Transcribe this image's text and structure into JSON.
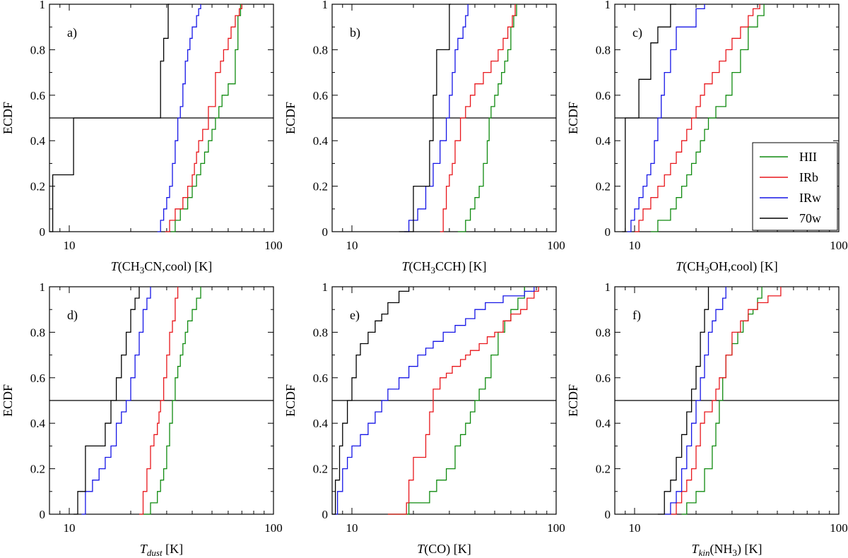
{
  "chart_data": [
    {
      "type": "line",
      "panel_label": "a)",
      "xlabel": {
        "prefix": "T",
        "mid": "(CH",
        "sub": "3",
        "suffix": "CN,cool) [K]"
      },
      "ylabel": "ECDF",
      "xscale": "log",
      "xlim": [
        8,
        100
      ],
      "ylim": [
        0,
        1
      ],
      "x_tick_labels": [
        {
          "value": 10,
          "label": "10"
        },
        {
          "value": 100,
          "label": "100"
        }
      ],
      "y_tick_labels": [
        "0",
        "0.2",
        "0.4",
        "0.6",
        "0.8",
        "1"
      ],
      "median_line": 0.5,
      "series": [
        {
          "name": "HII",
          "color": "#0f8a0f",
          "x": [
            31.5,
            33,
            35,
            38,
            40,
            42,
            44,
            46,
            48,
            50,
            52,
            54,
            56,
            60,
            65,
            67,
            69
          ],
          "y": [
            0,
            0.05,
            0.1,
            0.15,
            0.2,
            0.25,
            0.3,
            0.35,
            0.4,
            0.45,
            0.5,
            0.55,
            0.6,
            0.65,
            0.8,
            0.95,
            1
          ]
        },
        {
          "name": "IRb",
          "color": "#e8161b",
          "x": [
            29.5,
            31,
            33,
            36,
            38,
            40,
            41,
            42,
            43,
            45,
            48,
            52,
            55,
            57,
            60,
            62,
            65,
            68,
            70
          ],
          "y": [
            0,
            0.05,
            0.1,
            0.15,
            0.2,
            0.25,
            0.3,
            0.35,
            0.4,
            0.45,
            0.55,
            0.7,
            0.75,
            0.8,
            0.85,
            0.9,
            0.95,
            0.98,
            1
          ]
        },
        {
          "name": "IRw",
          "color": "#1515e6",
          "x": [
            27,
            28,
            29,
            30,
            31,
            32,
            33,
            34,
            35,
            36,
            37,
            38,
            39,
            40,
            42,
            43,
            44
          ],
          "y": [
            0,
            0.05,
            0.1,
            0.15,
            0.2,
            0.3,
            0.4,
            0.5,
            0.55,
            0.65,
            0.75,
            0.8,
            0.85,
            0.9,
            0.95,
            0.98,
            1
          ]
        },
        {
          "name": "70w",
          "color": "#000000",
          "x": [
            8,
            8.3,
            10.5,
            28,
            29,
            30.5,
            31
          ],
          "y": [
            0,
            0.25,
            0.5,
            0.75,
            0.85,
            1,
            1
          ]
        }
      ]
    },
    {
      "type": "line",
      "panel_label": "b)",
      "xlabel": {
        "prefix": "T",
        "mid": "(CH",
        "sub": "3",
        "suffix": "CCH) [K]"
      },
      "ylabel": "ECDF",
      "xscale": "log",
      "xlim": [
        8,
        100
      ],
      "ylim": [
        0,
        1
      ],
      "x_tick_labels": [
        {
          "value": 10,
          "label": "10"
        },
        {
          "value": 100,
          "label": "100"
        }
      ],
      "y_tick_labels": [
        "0",
        "0.2",
        "0.4",
        "0.6",
        "0.8",
        "1"
      ],
      "median_line": 0.5,
      "series": [
        {
          "name": "HII",
          "color": "#0f8a0f",
          "x": [
            33,
            36,
            38,
            40,
            42,
            44,
            46,
            47,
            48,
            50,
            52,
            54,
            56,
            58,
            60,
            62,
            64
          ],
          "y": [
            0,
            0.05,
            0.1,
            0.15,
            0.2,
            0.3,
            0.4,
            0.5,
            0.55,
            0.6,
            0.65,
            0.7,
            0.75,
            0.8,
            0.9,
            0.95,
            1
          ]
        },
        {
          "name": "IRb",
          "color": "#e8161b",
          "x": [
            27,
            28,
            29,
            30,
            31,
            32,
            34,
            36,
            38,
            40,
            44,
            48,
            52,
            55,
            58,
            61,
            63
          ],
          "y": [
            0,
            0.1,
            0.2,
            0.25,
            0.3,
            0.4,
            0.5,
            0.55,
            0.6,
            0.65,
            0.7,
            0.75,
            0.8,
            0.85,
            0.9,
            0.95,
            1
          ]
        },
        {
          "name": "IRw",
          "color": "#1515e6",
          "x": [
            18,
            19,
            21,
            23,
            25,
            27,
            29,
            30,
            31,
            32,
            33,
            35,
            36,
            37
          ],
          "y": [
            0,
            0.05,
            0.1,
            0.2,
            0.3,
            0.4,
            0.5,
            0.6,
            0.7,
            0.8,
            0.85,
            0.9,
            0.95,
            1
          ]
        },
        {
          "name": "70w",
          "color": "#000000",
          "x": [
            17,
            20,
            24,
            25,
            26,
            30,
            30.5
          ],
          "y": [
            0,
            0.2,
            0.4,
            0.6,
            0.8,
            1,
            1
          ]
        }
      ]
    },
    {
      "type": "line",
      "panel_label": "c)",
      "xlabel": {
        "prefix": "T",
        "mid": "(CH",
        "sub": "3",
        "suffix": "OH,cool) [K]"
      },
      "ylabel": "ECDF",
      "xscale": "log",
      "xlim": [
        8,
        100
      ],
      "ylim": [
        0,
        1
      ],
      "x_tick_labels": [
        {
          "value": 10,
          "label": "10"
        },
        {
          "value": 100,
          "label": "100"
        }
      ],
      "y_tick_labels": [
        "0",
        "0.2",
        "0.4",
        "0.6",
        "0.8",
        "1"
      ],
      "median_line": 0.5,
      "series": [
        {
          "name": "HII",
          "color": "#0f8a0f",
          "x": [
            12,
            13,
            15,
            16,
            17,
            18,
            19,
            20,
            21,
            22,
            23,
            25,
            28,
            30,
            33,
            36,
            40,
            43
          ],
          "y": [
            0,
            0.05,
            0.1,
            0.15,
            0.2,
            0.25,
            0.3,
            0.35,
            0.4,
            0.45,
            0.5,
            0.55,
            0.6,
            0.7,
            0.8,
            0.9,
            0.95,
            1
          ]
        },
        {
          "name": "IRb",
          "color": "#e8161b",
          "x": [
            10,
            10.5,
            11,
            12,
            13,
            14,
            15,
            16,
            17,
            18,
            19,
            20,
            21,
            22,
            24,
            26,
            28,
            30,
            33,
            36,
            38,
            41
          ],
          "y": [
            0,
            0.05,
            0.1,
            0.15,
            0.2,
            0.25,
            0.3,
            0.35,
            0.4,
            0.45,
            0.5,
            0.55,
            0.6,
            0.65,
            0.7,
            0.75,
            0.8,
            0.85,
            0.9,
            0.95,
            0.98,
            1
          ]
        },
        {
          "name": "IRw",
          "color": "#1515e6",
          "x": [
            9.2,
            9.6,
            10,
            10.5,
            11,
            11.5,
            12,
            12.5,
            13,
            13.5,
            14,
            15,
            16,
            20,
            22
          ],
          "y": [
            0,
            0.05,
            0.1,
            0.15,
            0.2,
            0.25,
            0.3,
            0.4,
            0.5,
            0.6,
            0.7,
            0.8,
            0.9,
            0.98,
            1
          ]
        },
        {
          "name": "70w",
          "color": "#000000",
          "x": [
            8.7,
            9,
            10.5,
            12,
            13,
            15,
            16
          ],
          "y": [
            0,
            0.5,
            0.67,
            0.83,
            0.9,
            1,
            1
          ]
        }
      ],
      "legend": {
        "position": "lower-right",
        "entries": [
          {
            "label": "HII",
            "color": "#0f8a0f"
          },
          {
            "label": "IRb",
            "color": "#e8161b"
          },
          {
            "label": "IRw",
            "color": "#1515e6"
          },
          {
            "label": "70w",
            "color": "#000000"
          }
        ]
      }
    },
    {
      "type": "line",
      "panel_label": "d)",
      "xlabel": {
        "prefix": "T",
        "sub_italic": "dust",
        "suffix": " [K]"
      },
      "ylabel": "ECDF",
      "xscale": "log",
      "xlim": [
        8,
        100
      ],
      "ylim": [
        0,
        1
      ],
      "x_tick_labels": [
        {
          "value": 10,
          "label": "10"
        },
        {
          "value": 100,
          "label": "100"
        }
      ],
      "y_tick_labels": [
        "0",
        "0.2",
        "0.4",
        "0.6",
        "0.8",
        "1"
      ],
      "median_line": 0.5,
      "series": [
        {
          "name": "HII",
          "color": "#0f8a0f",
          "x": [
            23,
            25,
            27,
            28,
            29,
            30,
            31,
            32,
            33,
            34,
            35,
            36,
            37,
            38,
            40,
            42,
            44
          ],
          "y": [
            0,
            0.05,
            0.1,
            0.15,
            0.2,
            0.3,
            0.4,
            0.5,
            0.6,
            0.65,
            0.7,
            0.75,
            0.8,
            0.85,
            0.9,
            0.95,
            1
          ]
        },
        {
          "name": "IRb",
          "color": "#e8161b",
          "x": [
            22,
            23,
            24,
            25,
            26,
            27,
            27.5,
            28,
            29,
            30,
            31,
            32,
            33,
            34
          ],
          "y": [
            0,
            0.1,
            0.2,
            0.3,
            0.35,
            0.4,
            0.45,
            0.5,
            0.6,
            0.7,
            0.8,
            0.85,
            0.95,
            1
          ]
        },
        {
          "name": "IRw",
          "color": "#1515e6",
          "x": [
            11.5,
            12,
            13,
            14,
            15,
            16,
            17,
            18,
            19,
            20,
            21,
            22,
            23,
            24,
            25
          ],
          "y": [
            0,
            0.1,
            0.15,
            0.2,
            0.25,
            0.3,
            0.4,
            0.45,
            0.5,
            0.6,
            0.7,
            0.8,
            0.9,
            0.95,
            1
          ]
        },
        {
          "name": "70w",
          "color": "#000000",
          "x": [
            10.5,
            11,
            12,
            15,
            16,
            17,
            18,
            19,
            20,
            21,
            22
          ],
          "y": [
            0,
            0.1,
            0.3,
            0.4,
            0.5,
            0.6,
            0.7,
            0.8,
            0.9,
            0.95,
            1
          ]
        }
      ]
    },
    {
      "type": "line",
      "panel_label": "e)",
      "xlabel": {
        "prefix": "T",
        "mid": "(CO) [K]"
      },
      "ylabel": "ECDF",
      "xscale": "log",
      "xlim": [
        8,
        100
      ],
      "ylim": [
        0,
        1
      ],
      "x_tick_labels": [
        {
          "value": 10,
          "label": "10"
        },
        {
          "value": 100,
          "label": "100"
        }
      ],
      "y_tick_labels": [
        "0",
        "0.2",
        "0.4",
        "0.6",
        "0.8",
        "1"
      ],
      "median_line": 0.5,
      "series": [
        {
          "name": "HII",
          "color": "#0f8a0f",
          "x": [
            15,
            19,
            24,
            26,
            29,
            32,
            34,
            36,
            38,
            40,
            42,
            45,
            48,
            52,
            56,
            60,
            65,
            70
          ],
          "y": [
            0,
            0.05,
            0.1,
            0.15,
            0.2,
            0.3,
            0.35,
            0.4,
            0.45,
            0.5,
            0.55,
            0.6,
            0.7,
            0.8,
            0.85,
            0.9,
            0.95,
            1
          ]
        },
        {
          "name": "IRb",
          "color": "#e8161b",
          "x": [
            15,
            18.5,
            19,
            20,
            23,
            24,
            25,
            27,
            29,
            31,
            34,
            36,
            38,
            42,
            46,
            50,
            55,
            60,
            67,
            72,
            78,
            82
          ],
          "y": [
            0,
            0.05,
            0.15,
            0.25,
            0.35,
            0.45,
            0.55,
            0.6,
            0.62,
            0.65,
            0.68,
            0.7,
            0.72,
            0.75,
            0.78,
            0.8,
            0.85,
            0.88,
            0.9,
            0.95,
            0.98,
            1
          ]
        },
        {
          "name": "IRw",
          "color": "#1515e6",
          "x": [
            8.2,
            8.5,
            9,
            9.5,
            10,
            11,
            12,
            13,
            14,
            15,
            17,
            19,
            21,
            23,
            25,
            28,
            32,
            36,
            40,
            45,
            55,
            70,
            78
          ],
          "y": [
            0,
            0.1,
            0.2,
            0.25,
            0.3,
            0.35,
            0.4,
            0.45,
            0.5,
            0.55,
            0.6,
            0.65,
            0.7,
            0.73,
            0.76,
            0.8,
            0.83,
            0.86,
            0.9,
            0.93,
            0.96,
            0.98,
            1
          ]
        },
        {
          "name": "70w",
          "color": "#000000",
          "x": [
            8,
            8.3,
            8.7,
            9,
            9.5,
            10,
            10.5,
            11,
            12,
            13,
            14,
            15,
            17,
            19
          ],
          "y": [
            0,
            0.15,
            0.3,
            0.4,
            0.5,
            0.6,
            0.7,
            0.75,
            0.8,
            0.85,
            0.88,
            0.93,
            0.98,
            1
          ]
        }
      ]
    },
    {
      "type": "line",
      "panel_label": "f)",
      "xlabel": {
        "prefix": "T",
        "sub_italic": "kin",
        "mid": "(NH",
        "sub": "3",
        "suffix": ") [K]"
      },
      "ylabel": "ECDF",
      "xscale": "log",
      "xlim": [
        8,
        100
      ],
      "ylim": [
        0,
        1
      ],
      "x_tick_labels": [
        {
          "value": 10,
          "label": "10"
        },
        {
          "value": 100,
          "label": "100"
        }
      ],
      "y_tick_labels": [
        "0",
        "0.2",
        "0.4",
        "0.6",
        "0.8",
        "1"
      ],
      "median_line": 0.5,
      "series": [
        {
          "name": "HII",
          "color": "#0f8a0f",
          "x": [
            17,
            18,
            20,
            22,
            24,
            25,
            26,
            27,
            28,
            30,
            32,
            34,
            36,
            38,
            40,
            42
          ],
          "y": [
            0,
            0.05,
            0.1,
            0.2,
            0.3,
            0.4,
            0.5,
            0.6,
            0.7,
            0.75,
            0.8,
            0.85,
            0.88,
            0.9,
            0.95,
            1
          ]
        },
        {
          "name": "IRb",
          "color": "#e8161b",
          "x": [
            15,
            16,
            17,
            18,
            19,
            20,
            21,
            22,
            24,
            25,
            26,
            28,
            30,
            33,
            36,
            40,
            45,
            52
          ],
          "y": [
            0,
            0.05,
            0.1,
            0.15,
            0.2,
            0.3,
            0.4,
            0.45,
            0.5,
            0.55,
            0.6,
            0.7,
            0.8,
            0.85,
            0.9,
            0.93,
            0.96,
            1
          ]
        },
        {
          "name": "IRw",
          "color": "#1515e6",
          "x": [
            14,
            15,
            16,
            17,
            18,
            19,
            20,
            21,
            22,
            23,
            24,
            25,
            27,
            28
          ],
          "y": [
            0,
            0.05,
            0.1,
            0.2,
            0.3,
            0.4,
            0.5,
            0.6,
            0.7,
            0.8,
            0.85,
            0.9,
            0.95,
            1
          ]
        },
        {
          "name": "70w",
          "color": "#000000",
          "x": [
            13,
            14,
            15,
            16,
            17,
            18,
            19,
            20,
            21,
            22,
            23
          ],
          "y": [
            0,
            0.1,
            0.15,
            0.25,
            0.35,
            0.45,
            0.55,
            0.65,
            0.8,
            0.9,
            1
          ]
        }
      ]
    }
  ]
}
